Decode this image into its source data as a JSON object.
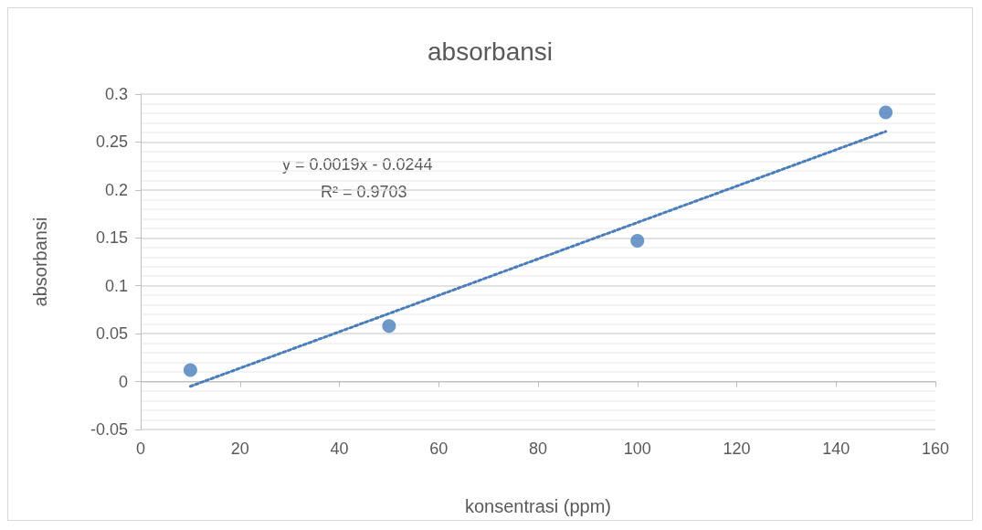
{
  "chart_data": {
    "type": "scatter",
    "title": "absorbansi",
    "xlabel": "konsentrasi (ppm)",
    "ylabel": "absorbansi",
    "annotations": [
      "y = 0.0019x - 0.0244",
      "R² = 0.9703"
    ],
    "xlim": [
      0,
      160
    ],
    "xticks": [
      0,
      20,
      40,
      60,
      80,
      100,
      120,
      140,
      160
    ],
    "ylim": [
      -0.05,
      0.3
    ],
    "yticks": [
      -0.05,
      0,
      0.05,
      0.1,
      0.15,
      0.2,
      0.25,
      0.3
    ],
    "grid": "y",
    "marker": "circle",
    "series": [
      {
        "color": "#4a7ebb",
        "x": [
          10,
          50,
          100,
          150
        ],
        "values": [
          0.012,
          0.058,
          0.147,
          0.281
        ]
      },
      {
        "type": "line",
        "color": "#4a7ebb",
        "marker": "none",
        "line_style": "dotted",
        "x": [
          10,
          150
        ],
        "values": [
          -0.005,
          0.261
        ]
      }
    ]
  }
}
